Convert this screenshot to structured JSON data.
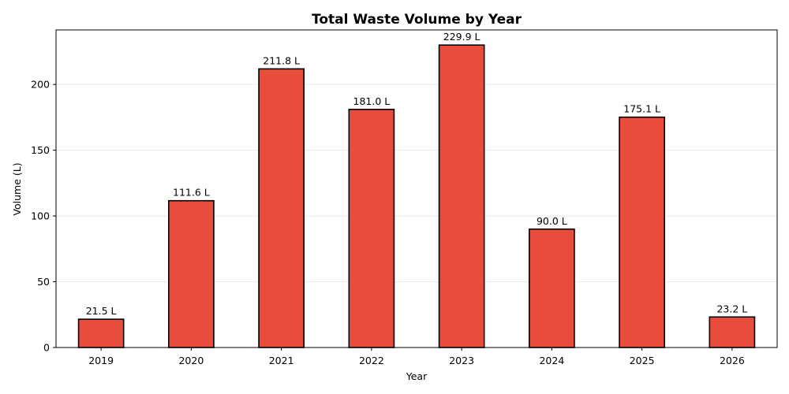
{
  "chart_data": {
    "type": "bar",
    "title": "Total Waste Volume by Year",
    "xlabel": "Year",
    "ylabel": "Volume (L)",
    "categories": [
      "2019",
      "2020",
      "2021",
      "2022",
      "2023",
      "2024",
      "2025",
      "2026"
    ],
    "values": [
      21.5,
      111.6,
      211.8,
      181.0,
      229.9,
      90.0,
      175.1,
      23.2
    ],
    "value_labels": [
      "21.5 L",
      "111.6 L",
      "211.8 L",
      "181.0 L",
      "229.9 L",
      "90.0 L",
      "175.1 L",
      "23.2 L"
    ],
    "ylim": [
      0,
      241.4
    ],
    "yticks": [
      0,
      50,
      100,
      150,
      200
    ],
    "grid": "y",
    "legend": "none",
    "bar_color": "#e74c3c",
    "edge_color": "#000000"
  }
}
